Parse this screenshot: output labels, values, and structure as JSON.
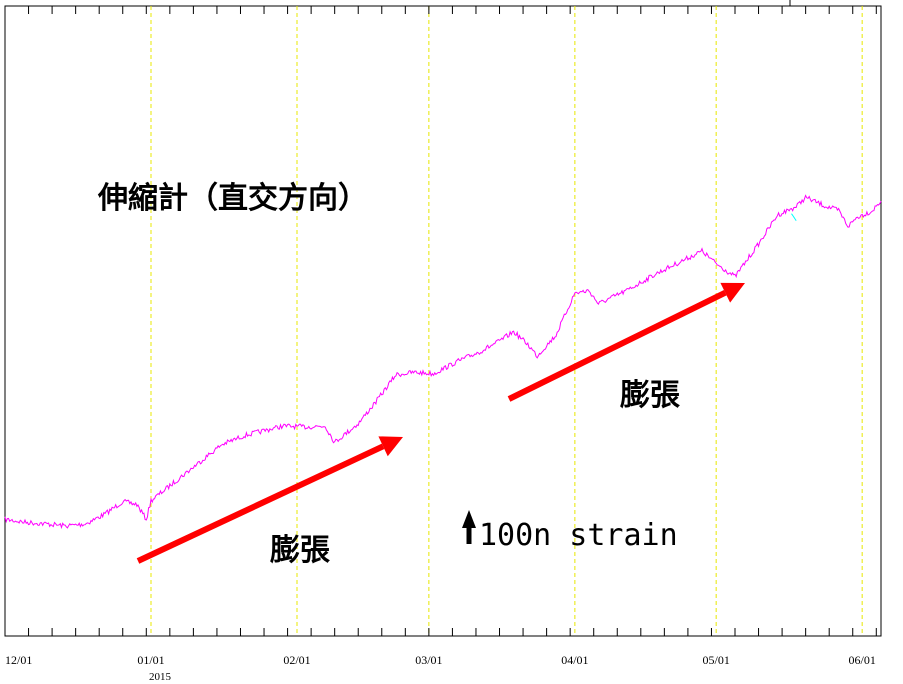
{
  "chart_data": {
    "type": "line",
    "title": "伸縮計（直交方向）",
    "x_start": "2014-12-01",
    "x_end": "2015-06-05",
    "x_ticks": [
      {
        "date": "2014-12-01",
        "label": "12/01"
      },
      {
        "date": "2015-01-01",
        "label": "01/01"
      },
      {
        "date": "2015-02-01",
        "label": "02/01"
      },
      {
        "date": "2015-03-01",
        "label": "03/01"
      },
      {
        "date": "2015-04-01",
        "label": "04/01"
      },
      {
        "date": "2015-05-01",
        "label": "05/01"
      },
      {
        "date": "2015-06-01",
        "label": "06/01"
      }
    ],
    "year_label": "2015",
    "grid": "vertical dashed lines at month boundaries",
    "ylim": [
      -250,
      1100
    ],
    "series": [
      {
        "color": "#ff00ff",
        "points": [
          [
            "2014-12-01",
            0
          ],
          [
            "2014-12-05",
            -6
          ],
          [
            "2014-12-10",
            -10
          ],
          [
            "2014-12-14",
            -14
          ],
          [
            "2014-12-18",
            -10
          ],
          [
            "2014-12-22",
            10
          ],
          [
            "2014-12-26",
            38
          ],
          [
            "2014-12-29",
            32
          ],
          [
            "2014-12-31",
            0
          ],
          [
            "2015-01-01",
            40
          ],
          [
            "2015-01-06",
            80
          ],
          [
            "2015-01-11",
            120
          ],
          [
            "2015-01-16",
            160
          ],
          [
            "2015-01-21",
            180
          ],
          [
            "2015-01-25",
            190
          ],
          [
            "2015-01-29",
            200
          ],
          [
            "2015-02-03",
            198
          ],
          [
            "2015-02-07",
            200
          ],
          [
            "2015-02-09",
            165
          ],
          [
            "2015-02-14",
            205
          ],
          [
            "2015-02-18",
            255
          ],
          [
            "2015-02-22",
            310
          ],
          [
            "2015-02-26",
            315
          ],
          [
            "2015-03-02",
            312
          ],
          [
            "2015-03-07",
            338
          ],
          [
            "2015-03-12",
            360
          ],
          [
            "2015-03-16",
            382
          ],
          [
            "2015-03-19",
            402
          ],
          [
            "2015-03-22",
            375
          ],
          [
            "2015-03-24",
            350
          ],
          [
            "2015-03-28",
            395
          ],
          [
            "2015-04-01",
            485
          ],
          [
            "2015-04-04",
            490
          ],
          [
            "2015-04-06",
            462
          ],
          [
            "2015-04-12",
            490
          ],
          [
            "2015-04-18",
            525
          ],
          [
            "2015-04-24",
            555
          ],
          [
            "2015-04-28",
            575
          ],
          [
            "2015-05-01",
            548
          ],
          [
            "2015-05-05",
            520
          ],
          [
            "2015-05-10",
            590
          ],
          [
            "2015-05-14",
            652
          ],
          [
            "2015-05-18",
            670
          ],
          [
            "2015-05-20",
            690
          ],
          [
            "2015-05-24",
            672
          ],
          [
            "2015-05-27",
            662
          ],
          [
            "2015-05-29",
            628
          ],
          [
            "2015-05-31",
            648
          ],
          [
            "2015-06-03",
            660
          ],
          [
            "2015-06-05",
            682
          ]
        ]
      },
      {
        "color": "#00ffff",
        "points": [
          [
            "2015-05-17",
            655
          ],
          [
            "2015-05-18",
            640
          ]
        ]
      }
    ],
    "annotations": [
      {
        "text": "膨張",
        "arrow_color": "#ff0000"
      },
      {
        "text": "膨張",
        "arrow_color": "#ff0000"
      }
    ],
    "scale_bar": {
      "value": 100,
      "text": "100n strain"
    }
  }
}
